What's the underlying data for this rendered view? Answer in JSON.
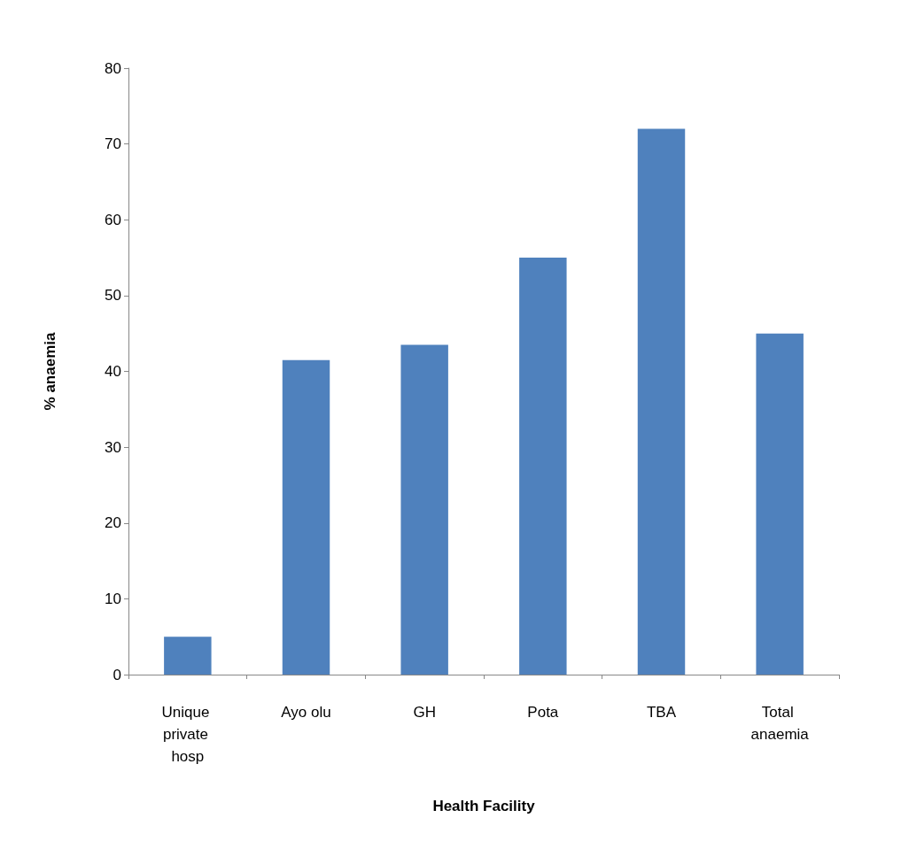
{
  "chart_data": {
    "type": "bar",
    "xlabel": "Health Facility",
    "ylabel": "% anaemia",
    "categories": [
      "Unique private hosp",
      "Ayo olu",
      "GH",
      "Pota",
      "TBA",
      "Total anaemia"
    ],
    "values": [
      5,
      41.5,
      43.5,
      55,
      72,
      45
    ],
    "color": "#4f81bd",
    "ylim": [
      0,
      80
    ],
    "yticks": [
      0,
      10,
      20,
      30,
      40,
      50,
      60,
      70,
      80
    ],
    "grid": false
  }
}
